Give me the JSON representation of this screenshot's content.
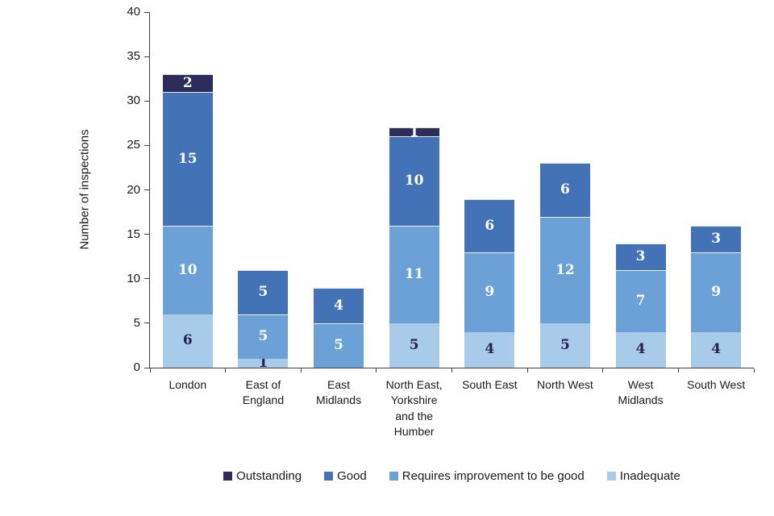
{
  "chart_data": {
    "type": "bar",
    "stacked": true,
    "title": "",
    "ylabel": "Number of inspections",
    "xlabel": "",
    "ylim": [
      0,
      40
    ],
    "yticks": [
      0,
      5,
      10,
      15,
      20,
      25,
      30,
      35,
      40
    ],
    "grid": false,
    "legend_position": "bottom-center",
    "categories": [
      "London",
      "East of England",
      "East Midlands",
      "North East, Yorkshire and the Humber",
      "South East",
      "North West",
      "West Midlands",
      "South West"
    ],
    "category_label_lines": [
      [
        "London"
      ],
      [
        "East of",
        "England"
      ],
      [
        "East",
        "Midlands"
      ],
      [
        "North East,",
        "Yorkshire",
        "and the",
        "Humber"
      ],
      [
        "South East"
      ],
      [
        "North West"
      ],
      [
        "West",
        "Midlands"
      ],
      [
        "South West"
      ]
    ],
    "series": [
      {
        "name": "Inadequate",
        "color": "#A9CBEA",
        "label_color": "#262253",
        "values": [
          6,
          1,
          0,
          5,
          4,
          5,
          4,
          4
        ]
      },
      {
        "name": "Requires improvement to be good",
        "color": "#6BA1D6",
        "label_color": "#ffffff",
        "values": [
          10,
          5,
          5,
          11,
          9,
          12,
          7,
          9
        ]
      },
      {
        "name": "Good",
        "color": "#4472B6",
        "label_color": "#ffffff",
        "values": [
          15,
          5,
          4,
          10,
          6,
          6,
          3,
          3
        ]
      },
      {
        "name": "Outstanding",
        "color": "#2E2C5B",
        "label_color": "#ffffff",
        "values": [
          2,
          0,
          0,
          1,
          0,
          0,
          0,
          0
        ]
      }
    ],
    "totals": [
      33,
      11,
      9,
      27,
      19,
      23,
      14,
      16
    ],
    "legend_order": [
      "Outstanding",
      "Good",
      "Requires improvement to be good",
      "Inadequate"
    ],
    "axis_color": "#404040"
  }
}
